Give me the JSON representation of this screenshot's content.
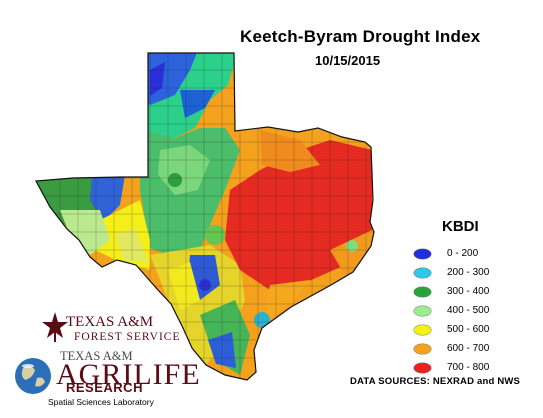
{
  "title": "Keetch-Byram Drought Index",
  "date": "10/15/2015",
  "legend": {
    "title": "KBDI",
    "items": [
      {
        "label": "0 - 200",
        "color": "#1f2fe0"
      },
      {
        "label": "200 - 300",
        "color": "#2ec8e8"
      },
      {
        "label": "300 - 400",
        "color": "#27a33a"
      },
      {
        "label": "400 - 500",
        "color": "#9bee8c"
      },
      {
        "label": "500 - 600",
        "color": "#f5f20f"
      },
      {
        "label": "600 - 700",
        "color": "#f3a21b"
      },
      {
        "label": "700 - 800",
        "color": "#e8231f"
      }
    ]
  },
  "sources": "DATA SOURCES: NEXRAD and NWS",
  "logos": {
    "forest_line1": "TEXAS A&M",
    "forest_line2": "FOREST SERVICE",
    "agrilife_line1": "TEXAS A&M",
    "agrilife_line2": "AGRILIFE",
    "agrilife_line3": "RESEARCH",
    "agrilife_line4": "Spatial Sciences Laboratory"
  }
}
